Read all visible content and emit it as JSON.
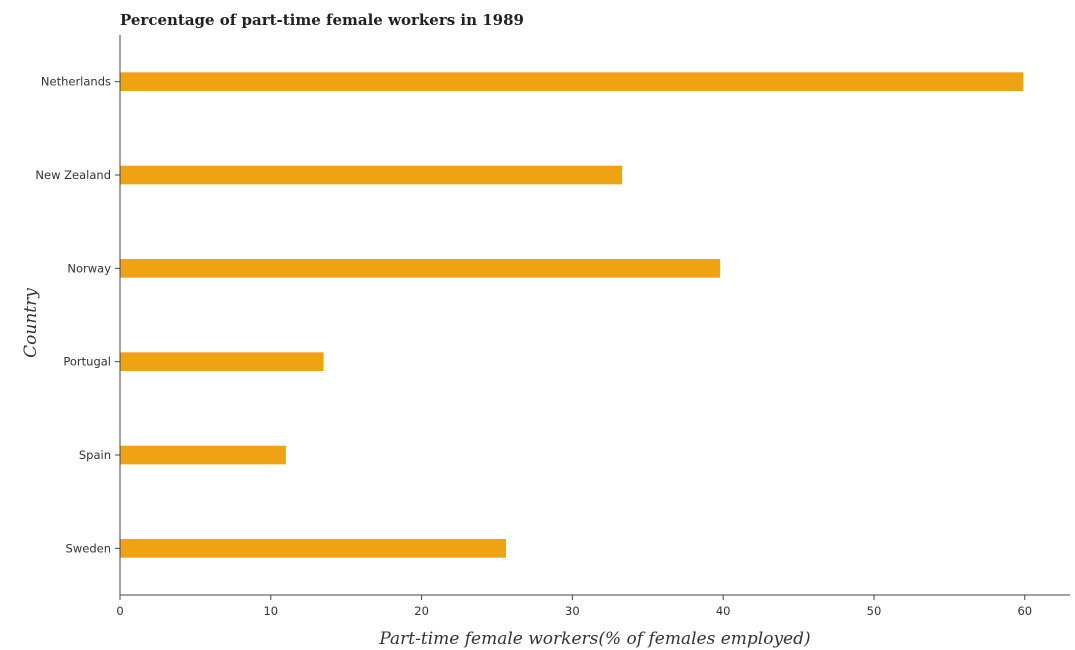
{
  "chart_data": {
    "type": "bar",
    "orientation": "horizontal",
    "title": "Percentage of part-time female workers in 1989",
    "xlabel": "Part-time female workers(% of females employed)",
    "ylabel": "Country",
    "categories": [
      "Netherlands",
      "New Zealand",
      "Norway",
      "Portugal",
      "Spain",
      "Sweden"
    ],
    "values": [
      59.9,
      33.3,
      39.8,
      13.5,
      11.0,
      25.6
    ],
    "xlim": [
      0,
      63
    ],
    "xticks": [
      0,
      10,
      20,
      30,
      40,
      50,
      60
    ],
    "grid": false,
    "bar_color": "#f0a215"
  }
}
